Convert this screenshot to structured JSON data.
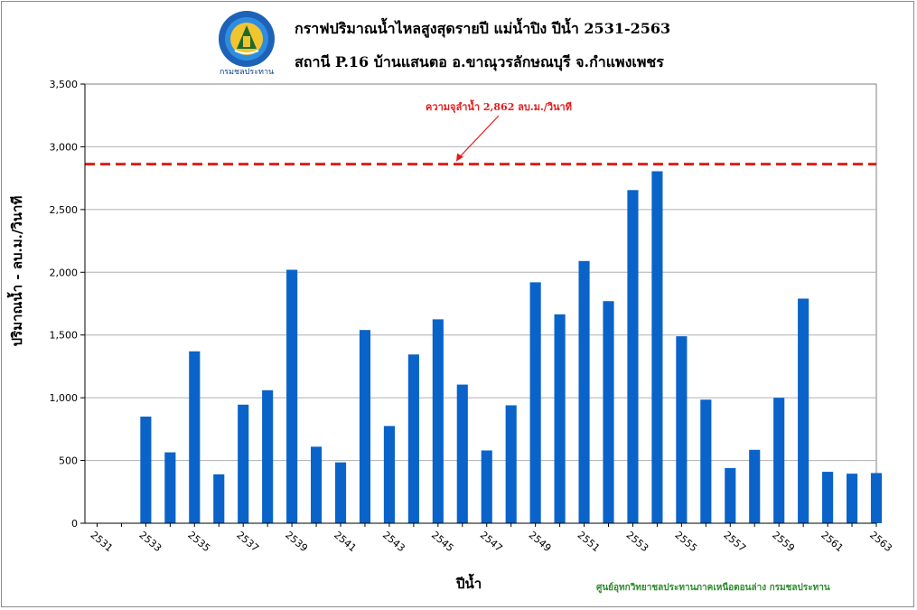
{
  "header": {
    "title_line1": "กราฟปริมาณน้ำไหลสูงสุดรายปี  แม่น้ำปิง ปีน้ำ 2531-2563",
    "title_line2": "สถานี P.16 บ้านแสนตอ อ.ขาณุวรลักษณบุรี จ.กำแพงเพชร",
    "logo_text": "กรมชลประทาน"
  },
  "footer": {
    "credit": "ศูนย์อุทกวิทยาชลประทานภาคเหนือตอนล่าง  กรมชลประทาน"
  },
  "colors": {
    "bar": "#0a63c9",
    "threshold": "#e31b1b",
    "grid": "#b0b0b0",
    "footer": "#2e8b2e"
  },
  "chart_data": {
    "type": "bar",
    "title": "กราฟปริมาณน้ำไหลสูงสุดรายปี  แม่น้ำปิง ปีน้ำ 2531-2563",
    "subtitle": "สถานี P.16 บ้านแสนตอ อ.ขาณุวรลักษณบุรี จ.กำแพงเพชร",
    "xlabel": "ปีน้ำ",
    "ylabel": "ปริมาณน้ำ  -  ลบ.ม./วินาที",
    "ylim": [
      0,
      3500
    ],
    "yticks": [
      0,
      500,
      1000,
      1500,
      2000,
      2500,
      3000,
      3500
    ],
    "ytick_labels": [
      "0",
      "500",
      "1,000",
      "1,500",
      "2,000",
      "2,500",
      "3,000",
      "3,500"
    ],
    "xtick_labels": [
      "2531",
      "2533",
      "2535",
      "2537",
      "2539",
      "2541",
      "2543",
      "2545",
      "2547",
      "2549",
      "2551",
      "2553",
      "2555",
      "2557",
      "2559",
      "2561",
      "2563"
    ],
    "grid": true,
    "categories": [
      2531,
      2532,
      2533,
      2534,
      2535,
      2536,
      2537,
      2538,
      2539,
      2540,
      2541,
      2542,
      2543,
      2544,
      2545,
      2546,
      2547,
      2548,
      2549,
      2550,
      2551,
      2552,
      2553,
      2554,
      2555,
      2556,
      2557,
      2558,
      2559,
      2560,
      2561,
      2562,
      2563
    ],
    "values": [
      null,
      null,
      850,
      565,
      1370,
      390,
      945,
      1060,
      2020,
      610,
      485,
      1540,
      775,
      1345,
      1625,
      1105,
      580,
      940,
      1920,
      1665,
      2090,
      1770,
      2655,
      2805,
      1490,
      985,
      440,
      585,
      1000,
      1790,
      410,
      395,
      400
    ],
    "threshold": {
      "value": 2862,
      "label": "ความจุลำน้ำ 2,862 ลบ.ม./วินาที"
    }
  }
}
